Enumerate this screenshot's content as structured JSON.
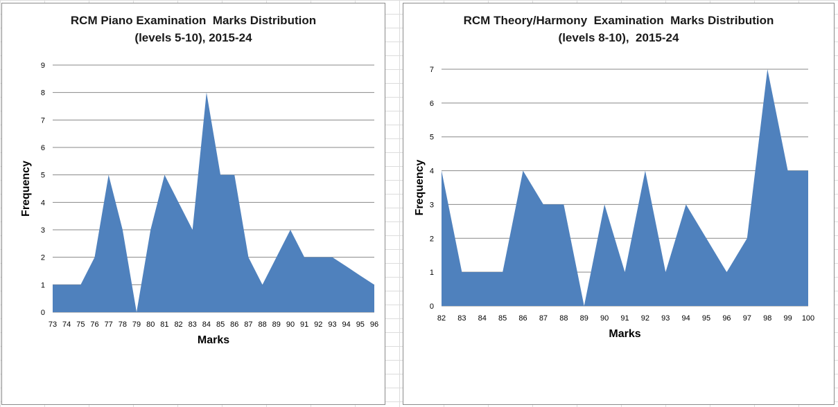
{
  "chart_data": [
    {
      "type": "area",
      "title": [
        "RCM Piano Examination  Marks Distribution",
        "(levels 5-10), 2015-24"
      ],
      "xlabel": "Marks",
      "ylabel": "Frequency",
      "categories": [
        "73",
        "74",
        "75",
        "76",
        "77",
        "78",
        "79",
        "80",
        "81",
        "82",
        "83",
        "84",
        "85",
        "86",
        "87",
        "88",
        "89",
        "90",
        "91",
        "92",
        "93",
        "94",
        "95",
        "96"
      ],
      "series": [
        {
          "values": [
            1,
            1,
            1,
            2,
            5,
            3,
            0,
            3,
            5,
            4,
            3,
            8,
            5,
            5,
            2,
            1,
            2,
            3,
            2,
            2,
            2,
            1.67,
            1.33,
            1
          ]
        }
      ],
      "ylim": [
        0,
        9
      ],
      "yticks": [
        "0",
        "1",
        "2",
        "3",
        "4",
        "5",
        "6",
        "7",
        "8",
        "9"
      ],
      "grid": true,
      "color": "#4f81bd"
    },
    {
      "type": "area",
      "title": [
        "RCM Theory/Harmony  Examination  Marks Distribution",
        "(levels 8-10),  2015-24"
      ],
      "xlabel": "Marks",
      "ylabel": "Frequency",
      "categories": [
        "82",
        "83",
        "84",
        "85",
        "86",
        "87",
        "88",
        "89",
        "90",
        "91",
        "92",
        "93",
        "94",
        "95",
        "96",
        "97",
        "98",
        "99",
        "100"
      ],
      "series": [
        {
          "values": [
            4,
            1,
            1,
            1,
            4,
            3,
            3,
            0,
            3,
            1,
            4,
            1,
            3,
            2,
            1,
            2,
            7,
            4,
            4
          ]
        }
      ],
      "ylim": [
        0,
        7
      ],
      "yticks": [
        "0",
        "1",
        "2",
        "3",
        "4",
        "5",
        "6",
        "7"
      ],
      "grid": true,
      "color": "#4f81bd"
    }
  ]
}
